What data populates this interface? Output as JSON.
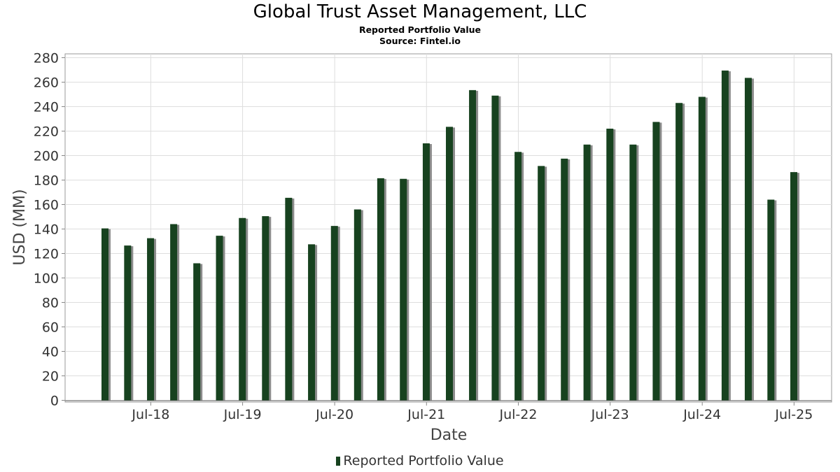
{
  "chart_data": {
    "type": "bar",
    "title": "Global Trust Asset Management, LLC",
    "subtitle": "Reported Portfolio Value",
    "source": "Source: Fintel.io",
    "xlabel": "Date",
    "ylabel": "USD (MM)",
    "ylim": [
      0,
      280
    ],
    "yticks": [
      0,
      20,
      40,
      60,
      80,
      100,
      120,
      140,
      160,
      180,
      200,
      220,
      240,
      260,
      280
    ],
    "xtick_labels": [
      "Jul-18",
      "Jul-19",
      "Jul-20",
      "Jul-21",
      "Jul-22",
      "Jul-23",
      "Jul-24",
      "Jul-25"
    ],
    "grid": true,
    "legend_position": "bottom",
    "series": [
      {
        "name": "Reported Portfolio Value",
        "color": "#17421f",
        "dates": [
          "2017-12-31",
          "2018-03-31",
          "2018-06-30",
          "2018-09-30",
          "2018-12-31",
          "2019-03-31",
          "2019-06-30",
          "2019-09-30",
          "2019-12-31",
          "2020-03-31",
          "2020-06-30",
          "2020-09-30",
          "2020-12-31",
          "2021-03-31",
          "2021-06-30",
          "2021-09-30",
          "2021-12-31",
          "2022-03-31",
          "2022-06-30",
          "2022-09-30",
          "2022-12-31",
          "2023-03-31",
          "2023-06-30",
          "2023-09-30",
          "2023-12-31",
          "2024-03-31",
          "2024-06-30",
          "2024-09-30",
          "2024-12-31",
          "2025-03-31",
          "2025-06-30"
        ],
        "values": [
          140.5,
          126.5,
          132.5,
          144,
          112,
          134.5,
          149,
          150.5,
          165.5,
          127.5,
          142.5,
          156,
          181.5,
          181,
          210,
          223.5,
          253.5,
          249,
          203,
          191.5,
          197.5,
          209,
          222,
          209,
          227.5,
          243,
          248,
          269.5,
          263.5,
          164,
          186.5
        ]
      }
    ]
  }
}
